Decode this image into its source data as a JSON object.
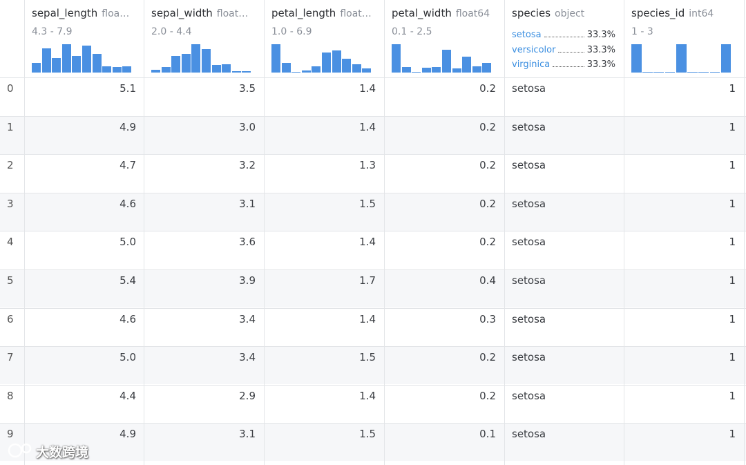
{
  "columns": [
    {
      "name": "sepal_length",
      "dtype": "floa…",
      "range": "4.3 - 7.9",
      "histogram": [
        9,
        23,
        14,
        27,
        16,
        26,
        18,
        6,
        5,
        6
      ]
    },
    {
      "name": "sepal_width",
      "dtype": "float…",
      "range": "2.0 - 4.4",
      "histogram": [
        4,
        7,
        22,
        24,
        37,
        31,
        10,
        11,
        2,
        2
      ]
    },
    {
      "name": "petal_length",
      "dtype": "float…",
      "range": "1.0 - 6.9",
      "histogram": [
        37,
        13,
        0,
        3,
        8,
        26,
        29,
        18,
        11,
        5
      ]
    },
    {
      "name": "petal_width",
      "dtype": "float64",
      "range": "0.1 - 2.5",
      "histogram": [
        41,
        8,
        1,
        7,
        8,
        33,
        6,
        23,
        9,
        14
      ]
    },
    {
      "name": "species",
      "dtype": "object",
      "value_counts": [
        {
          "label": "setosa",
          "percent": "33.3%"
        },
        {
          "label": "versicolor",
          "percent": "33.3%"
        },
        {
          "label": "virginica",
          "percent": "33.3%"
        }
      ]
    },
    {
      "name": "species_id",
      "dtype": "int64",
      "range": "1 - 3",
      "histogram": [
        50,
        0,
        0,
        0,
        50,
        0,
        0,
        0,
        50
      ]
    }
  ],
  "rows": [
    [
      0,
      "5.1",
      "3.5",
      "1.4",
      "0.2",
      "setosa",
      1
    ],
    [
      1,
      "4.9",
      "3.0",
      "1.4",
      "0.2",
      "setosa",
      1
    ],
    [
      2,
      "4.7",
      "3.2",
      "1.3",
      "0.2",
      "setosa",
      1
    ],
    [
      3,
      "4.6",
      "3.1",
      "1.5",
      "0.2",
      "setosa",
      1
    ],
    [
      4,
      "5.0",
      "3.6",
      "1.4",
      "0.2",
      "setosa",
      1
    ],
    [
      5,
      "5.4",
      "3.9",
      "1.7",
      "0.4",
      "setosa",
      1
    ],
    [
      6,
      "4.6",
      "3.4",
      "1.4",
      "0.3",
      "setosa",
      1
    ],
    [
      7,
      "5.0",
      "3.4",
      "1.5",
      "0.2",
      "setosa",
      1
    ],
    [
      8,
      "4.4",
      "2.9",
      "1.4",
      "0.2",
      "setosa",
      1
    ],
    [
      9,
      "4.9",
      "3.1",
      "1.5",
      "0.1",
      "setosa",
      1
    ]
  ],
  "watermark": "大数跨境"
}
